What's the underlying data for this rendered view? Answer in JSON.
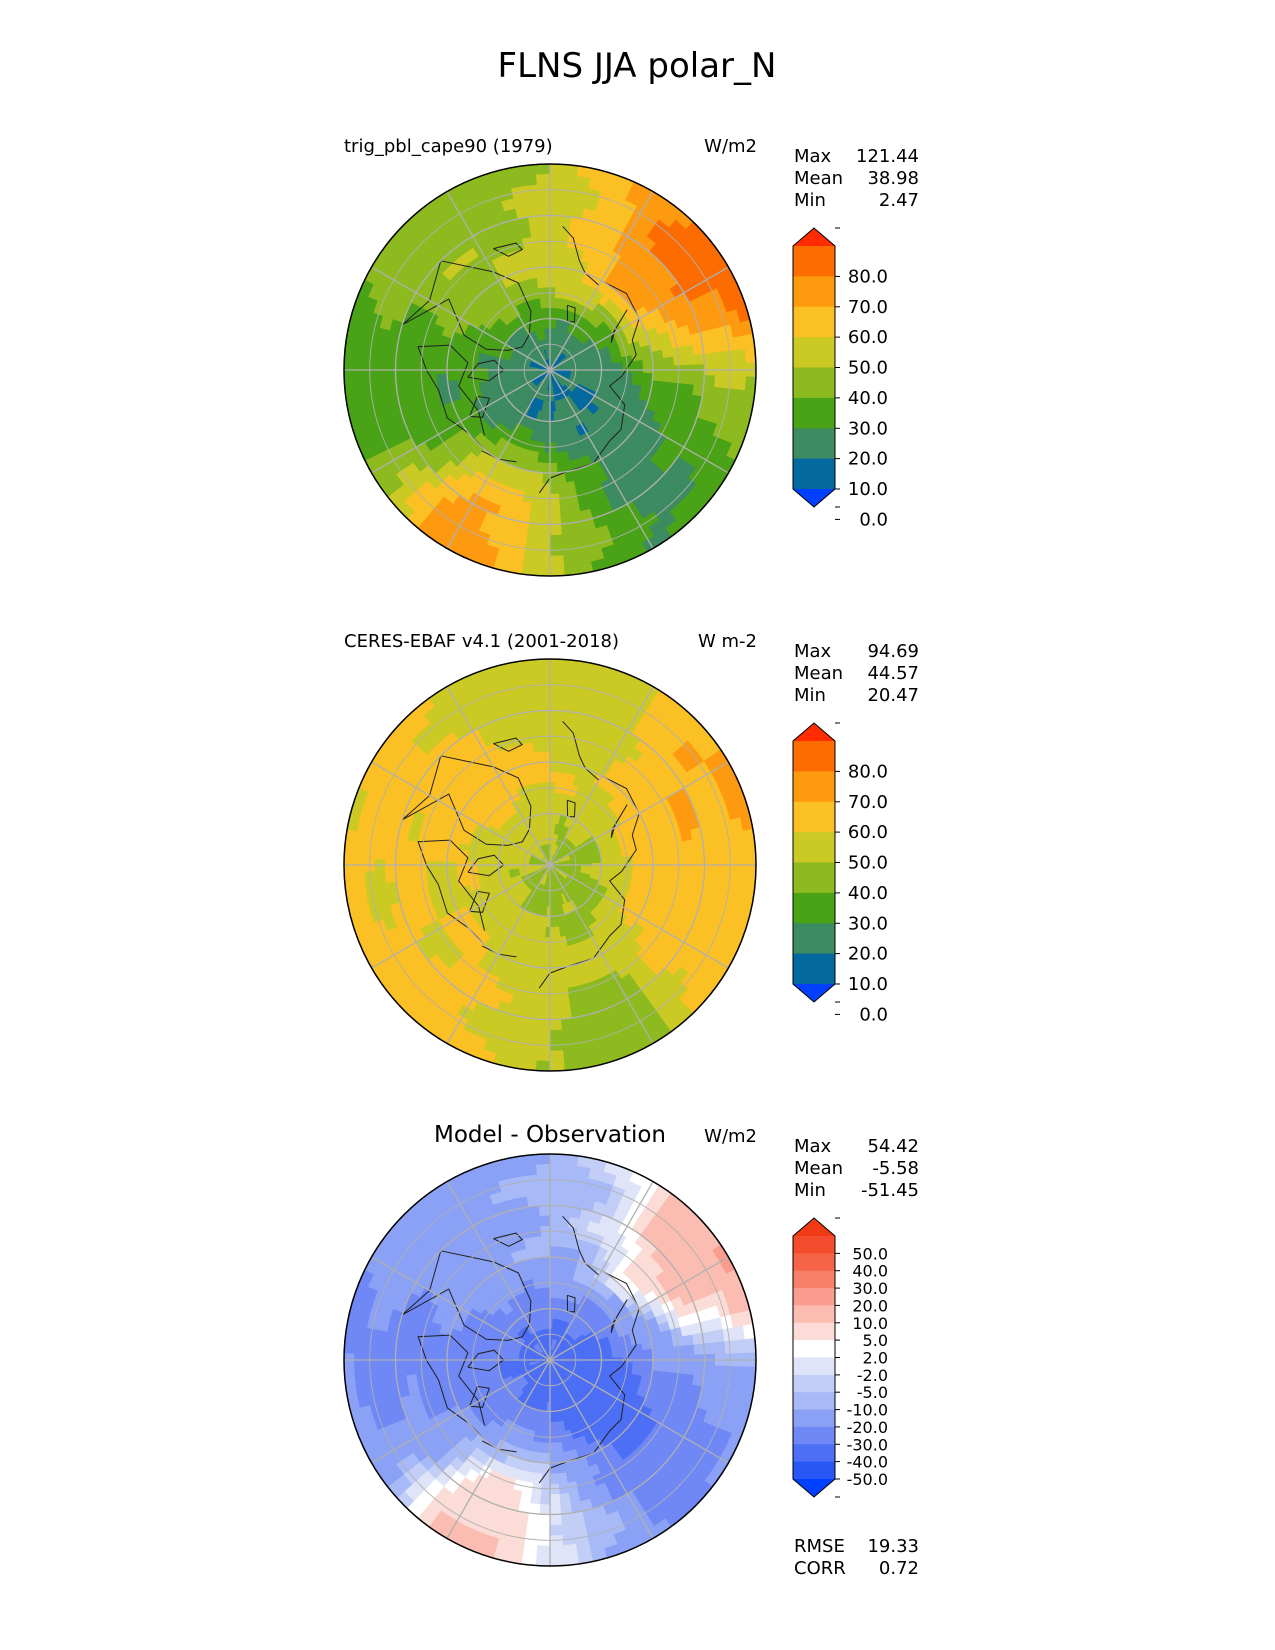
{
  "figure": {
    "title": "FLNS JJA polar_N"
  },
  "colors": {
    "main_levels": [
      "#0140ff",
      "#03699f",
      "#3c8b61",
      "#4aa317",
      "#8dba1e",
      "#cbca25",
      "#fbc024",
      "#fd9a10",
      "#fc6c00",
      "#fe2c00"
    ],
    "diff_levels": [
      "#0040ff",
      "#2957f5",
      "#4d6ff6",
      "#6f88f5",
      "#8aa1f6",
      "#a7b9f6",
      "#c3cef6",
      "#dfe4f9",
      "#ffffff",
      "#fbdcd7",
      "#fbbcb2",
      "#fa9d8e",
      "#f88069",
      "#f66548",
      "#f44c2c",
      "#f03a16"
    ],
    "graticule": "#b0b0b0",
    "coastline": "#202020"
  },
  "chart_data": [
    {
      "type": "polar_contour_map",
      "projection": "north-polar-stereographic",
      "title_left": "trig_pbl_cape90 (1979)",
      "title_right": "W/m2",
      "stats": [
        {
          "label": "Max",
          "value": "121.44"
        },
        {
          "label": "Mean",
          "value": "38.98"
        },
        {
          "label": "Min",
          "value": "2.47"
        }
      ],
      "colorbar": {
        "palette": "main_levels",
        "extend": "both",
        "tick_labels": [
          "80.0",
          "70.0",
          "60.0",
          "50.0",
          "40.0",
          "30.0",
          "20.0",
          "10.0",
          "0.0"
        ]
      },
      "field": {
        "pole_value": 7,
        "regions": [
          {
            "lon": 120,
            "lat": 72,
            "value": 6
          },
          {
            "lon": -90,
            "lat": 75,
            "value": 9
          },
          {
            "lon": -40,
            "lat": 72,
            "value": 50
          },
          {
            "lon": 60,
            "lat": 55,
            "value": 85
          },
          {
            "lon": 40,
            "lat": 58,
            "value": 70
          },
          {
            "lon": -160,
            "lat": 55,
            "value": 88
          },
          {
            "lon": -110,
            "lat": 55,
            "value": 28
          },
          {
            "lon": 100,
            "lat": 58,
            "value": 35
          },
          {
            "lon": 180,
            "lat": 55,
            "value": 18
          },
          {
            "lon": -20,
            "lat": 55,
            "value": 30
          },
          {
            "lon": 10,
            "lat": 60,
            "value": 45
          }
        ]
      },
      "stats_table": []
    },
    {
      "type": "polar_contour_map",
      "projection": "north-polar-stereographic",
      "title_left": "CERES-EBAF v4.1 (2001-2018)",
      "title_right": "W m-2",
      "stats": [
        {
          "label": "Max",
          "value": "94.69"
        },
        {
          "label": "Mean",
          "value": "44.57"
        },
        {
          "label": "Min",
          "value": "20.47"
        }
      ],
      "colorbar": {
        "palette": "main_levels",
        "extend": "both",
        "tick_labels": [
          "80.0",
          "70.0",
          "60.0",
          "50.0",
          "40.0",
          "30.0",
          "20.0",
          "10.0",
          "0.0"
        ]
      },
      "field": {
        "pole_value": 35,
        "regions": [
          {
            "lon": 60,
            "lat": 55,
            "value": 62
          },
          {
            "lon": -160,
            "lat": 55,
            "value": 60
          },
          {
            "lon": -40,
            "lat": 72,
            "value": 62
          },
          {
            "lon": 180,
            "lat": 55,
            "value": 30
          },
          {
            "lon": -100,
            "lat": 60,
            "value": 52
          },
          {
            "lon": 100,
            "lat": 58,
            "value": 55
          },
          {
            "lon": -20,
            "lat": 55,
            "value": 45
          },
          {
            "lon": 10,
            "lat": 60,
            "value": 42
          },
          {
            "lon": -90,
            "lat": 75,
            "value": 45
          }
        ]
      },
      "stats_table": []
    },
    {
      "type": "polar_contour_map",
      "projection": "north-polar-stereographic",
      "title_center": "Model - Observation",
      "title_right": "W/m2",
      "stats": [
        {
          "label": "Max",
          "value": "54.42"
        },
        {
          "label": "Mean",
          "value": "-5.58"
        },
        {
          "label": "Min",
          "value": "-51.45"
        }
      ],
      "colorbar": {
        "palette": "diff_levels",
        "extend": "both",
        "tick_labels": [
          "50.0",
          "40.0",
          "30.0",
          "20.0",
          "10.0",
          "5.0",
          "2.0",
          "-2.0",
          "-5.0",
          "-10.0",
          "-20.0",
          "-30.0",
          "-40.0",
          "-50.0"
        ]
      },
      "field": {
        "pole_value": -35,
        "regions": [
          {
            "lon": 60,
            "lat": 55,
            "value": 25
          },
          {
            "lon": -160,
            "lat": 55,
            "value": 25
          },
          {
            "lon": 120,
            "lat": 72,
            "value": -40
          },
          {
            "lon": -90,
            "lat": 75,
            "value": -30
          },
          {
            "lon": -40,
            "lat": 72,
            "value": -12
          },
          {
            "lon": 180,
            "lat": 55,
            "value": -12
          },
          {
            "lon": -110,
            "lat": 55,
            "value": -20
          },
          {
            "lon": 100,
            "lat": 58,
            "value": -15
          },
          {
            "lon": -20,
            "lat": 55,
            "value": -15
          },
          {
            "lon": 10,
            "lat": 60,
            "value": -5
          }
        ]
      },
      "stats_table": [
        {
          "label": "RMSE",
          "value": "19.33"
        },
        {
          "label": "CORR",
          "value": "0.72"
        }
      ]
    }
  ]
}
